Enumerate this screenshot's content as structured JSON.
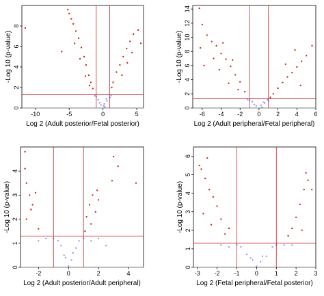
{
  "chart_data": [
    {
      "type": "scatter",
      "xlabel": "Log 2 (Adult posterior/Fetal posterior)",
      "ylabel": "-Log 10 (p-value)",
      "xlim": [
        -12,
        6
      ],
      "ylim": [
        0,
        10
      ],
      "xticks": [
        -10,
        -5,
        0,
        5
      ],
      "yticks": [
        0,
        2,
        4,
        6,
        8
      ],
      "fold_change_cutoffs": [
        -1,
        1
      ],
      "pvalue_cutoff": 1.3,
      "significant_color": "#d42a10",
      "nonsignificant_color": "#1a1adb",
      "series": [
        {
          "values": [
            [
              -11.5,
              7.8
            ],
            [
              -5.2,
              9.6
            ],
            [
              -5,
              9.2
            ],
            [
              -4.7,
              8.7
            ],
            [
              -4.4,
              8.2
            ],
            [
              -4,
              7.5
            ],
            [
              -3.6,
              6.8
            ],
            [
              -3.2,
              5.9
            ],
            [
              -2.8,
              5
            ],
            [
              -2.5,
              4.2
            ],
            [
              -2.1,
              3.2
            ],
            [
              -1.8,
              2.5
            ],
            [
              -1.5,
              1.9
            ],
            [
              -4.2,
              6.3
            ],
            [
              -3.4,
              4.8
            ],
            [
              -2.6,
              3.1
            ],
            [
              -2,
              2.2
            ],
            [
              -6.1,
              5.5
            ],
            [
              1.5,
              2.5
            ],
            [
              2,
              3.5
            ],
            [
              2.5,
              4.2
            ],
            [
              3,
              5
            ],
            [
              3.5,
              5.8
            ],
            [
              4,
              6.5
            ],
            [
              4.5,
              7.2
            ],
            [
              2.8,
              3.2
            ],
            [
              3.6,
              4.4
            ],
            [
              4.3,
              5.4
            ],
            [
              5.2,
              7.6
            ],
            [
              5.6,
              6.3
            ],
            [
              1.3,
              2
            ],
            [
              0.3,
              0.1
            ],
            [
              -0.3,
              0.3
            ],
            [
              0.6,
              0.7
            ],
            [
              -0.7,
              0.8
            ],
            [
              0.2,
              0.4
            ],
            [
              -1,
              1.1
            ],
            [
              1,
              1
            ],
            [
              0.5,
              0.9
            ],
            [
              -0.5,
              0.5
            ],
            [
              0.1,
              0.2
            ],
            [
              -1.2,
              1.2
            ],
            [
              1.2,
              1.2
            ]
          ]
        }
      ]
    },
    {
      "type": "scatter",
      "xlabel": "Log 2 (Adult peripheral/Fetal peripheral)",
      "ylabel": "-Log 10 (p-value)",
      "xlim": [
        -7,
        6
      ],
      "ylim": [
        0,
        14.5
      ],
      "xticks": [
        -6,
        -4,
        -2,
        0,
        2,
        4,
        6
      ],
      "yticks": [
        0,
        2,
        4,
        6,
        8,
        10,
        12,
        14
      ],
      "fold_change_cutoffs": [
        -1,
        1
      ],
      "pvalue_cutoff": 1.3,
      "significant_color": "#d42a10",
      "nonsignificant_color": "#1a1adb",
      "series": [
        {
          "values": [
            [
              -6.3,
              14.1
            ],
            [
              -6,
              11.8
            ],
            [
              -5.5,
              10.3
            ],
            [
              -5,
              9.4
            ],
            [
              -4.5,
              8.8
            ],
            [
              -4,
              7.7
            ],
            [
              -3.5,
              6.9
            ],
            [
              -3,
              5.9
            ],
            [
              -2.5,
              4.7
            ],
            [
              -2,
              3.7
            ],
            [
              -1.5,
              2.3
            ],
            [
              -6.2,
              8.5
            ],
            [
              -5.8,
              6
            ],
            [
              -4.8,
              7
            ],
            [
              -4.2,
              5.4
            ],
            [
              -3.8,
              9.2
            ],
            [
              -3.2,
              3.5
            ],
            [
              -2.8,
              6.8
            ],
            [
              -2.2,
              2.6
            ],
            [
              1.5,
              2
            ],
            [
              2,
              2.8
            ],
            [
              2.5,
              3.6
            ],
            [
              3,
              4.4
            ],
            [
              3.5,
              5
            ],
            [
              4,
              5.8
            ],
            [
              4.5,
              6.6
            ],
            [
              5,
              7.4
            ],
            [
              5.6,
              8.8
            ],
            [
              3.8,
              8.2
            ],
            [
              2.8,
              6.2
            ],
            [
              4.4,
              3.2
            ],
            [
              1.2,
              1.5
            ],
            [
              0.3,
              0.1
            ],
            [
              -0.3,
              0.3
            ],
            [
              0.6,
              0.7
            ],
            [
              -0.7,
              0.9
            ],
            [
              0.2,
              0.4
            ],
            [
              -1,
              1.1
            ],
            [
              1,
              1
            ],
            [
              0.5,
              0.8
            ],
            [
              -0.5,
              0.5
            ],
            [
              -1.2,
              1.2
            ],
            [
              0.9,
              1.2
            ]
          ]
        }
      ]
    },
    {
      "type": "scatter",
      "xlabel": "Log 2 (Adult posterior/Adult peripheral)",
      "ylabel": "-Log 10 (p-value)",
      "xlim": [
        -3.2,
        5
      ],
      "ylim": [
        0,
        5
      ],
      "xticks": [
        -2,
        0,
        2,
        4
      ],
      "yticks": [
        0,
        1,
        2,
        3,
        4
      ],
      "fold_change_cutoffs": [
        -1,
        1
      ],
      "pvalue_cutoff": 1.3,
      "significant_color": "#d42a10",
      "nonsignificant_color": "#1a1adb",
      "series": [
        {
          "values": [
            [
              -2.9,
              4.8
            ],
            [
              -2.9,
              4.1
            ],
            [
              -2.8,
              3.5
            ],
            [
              -2.6,
              3
            ],
            [
              -2.5,
              2.4
            ],
            [
              -2.4,
              2.6
            ],
            [
              -2.2,
              3.1
            ],
            [
              -2.8,
              2
            ],
            [
              -2,
              1.6
            ],
            [
              1.2,
              2.1
            ],
            [
              1.4,
              2.6
            ],
            [
              1.6,
              3
            ],
            [
              1.8,
              2.3
            ],
            [
              1.9,
              3.2
            ],
            [
              2,
              2.8
            ],
            [
              1.5,
              1.8
            ],
            [
              3,
              4.6
            ],
            [
              3.3,
              4.2
            ],
            [
              2.9,
              3.6
            ],
            [
              4.5,
              3.5
            ],
            [
              1.1,
              1.5
            ],
            [
              0,
              0.05
            ],
            [
              0.2,
              0.3
            ],
            [
              -0.2,
              0.4
            ],
            [
              0.5,
              0.8
            ],
            [
              -0.5,
              0.9
            ],
            [
              0.7,
              1.1
            ],
            [
              -0.7,
              1.1
            ],
            [
              1,
              1.2
            ],
            [
              -1,
              1.2
            ],
            [
              -1.5,
              1.2
            ],
            [
              1.5,
              1.1
            ],
            [
              -2,
              1.1
            ],
            [
              2,
              1.2
            ],
            [
              2.5,
              0.9
            ],
            [
              0.3,
              0.6
            ],
            [
              -0.3,
              0.5
            ]
          ]
        }
      ]
    },
    {
      "type": "scatter",
      "xlabel": "Log 2 (Fetal peripheral/Fetal posterior)",
      "ylabel": "-Log 10 (p-value)",
      "xlim": [
        -3.2,
        3
      ],
      "ylim": [
        0,
        6.5
      ],
      "xticks": [
        -3,
        -2,
        -1,
        0,
        1,
        2,
        3
      ],
      "yticks": [
        0,
        1,
        2,
        3,
        4,
        5,
        6
      ],
      "fold_change_cutoffs": [
        -1,
        1
      ],
      "pvalue_cutoff": 1.3,
      "significant_color": "#d42a10",
      "nonsignificant_color": "#1a1adb",
      "series": [
        {
          "values": [
            [
              -2.5,
              5.9
            ],
            [
              -2.8,
              5.3
            ],
            [
              -2.6,
              4.8
            ],
            [
              -2.4,
              4.2
            ],
            [
              -2.2,
              3.8
            ],
            [
              -2,
              3.3
            ],
            [
              -1.8,
              2.6
            ],
            [
              -2.7,
              2.9
            ],
            [
              -2.3,
              2.3
            ],
            [
              -1.6,
              1.8
            ],
            [
              -1.4,
              2.1
            ],
            [
              -2.9,
              5.5
            ],
            [
              1.8,
              2.1
            ],
            [
              2,
              2.7
            ],
            [
              2.2,
              3.4
            ],
            [
              2.4,
              4.2
            ],
            [
              2.6,
              4.7
            ],
            [
              2.5,
              5.1
            ],
            [
              2.8,
              4.2
            ],
            [
              1.6,
              1.7
            ],
            [
              2.3,
              2
            ],
            [
              0,
              0.05
            ],
            [
              0.2,
              0.3
            ],
            [
              -0.2,
              0.4
            ],
            [
              0.5,
              0.6
            ],
            [
              -0.5,
              0.7
            ],
            [
              0.8,
              1.1
            ],
            [
              -0.8,
              1.1
            ],
            [
              1,
              1.2
            ],
            [
              -1,
              1.2
            ],
            [
              1.4,
              1.2
            ],
            [
              -1.4,
              1.1
            ],
            [
              0.3,
              0.6
            ],
            [
              -0.3,
              0.5
            ],
            [
              1.8,
              1.2
            ],
            [
              -1.8,
              1.2
            ]
          ]
        }
      ]
    }
  ]
}
